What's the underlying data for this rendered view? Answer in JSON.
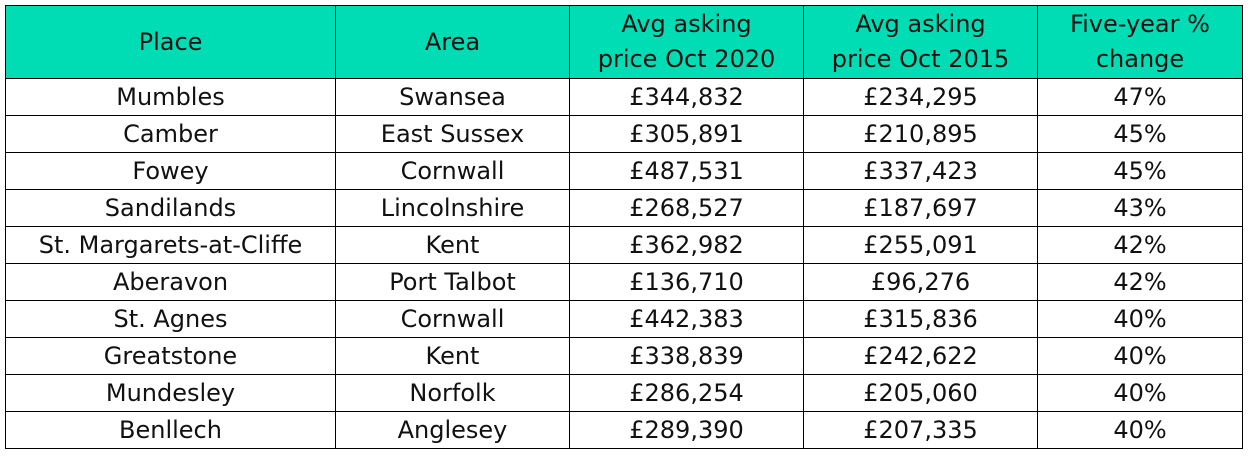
{
  "table": {
    "headers": [
      [
        "Place"
      ],
      [
        "Area"
      ],
      [
        "Avg asking",
        "price Oct 2020"
      ],
      [
        "Avg asking",
        "price Oct 2015"
      ],
      [
        "Five-year %",
        "change"
      ]
    ],
    "header_bg": "#00dcb4",
    "rows": [
      [
        "Mumbles",
        "Swansea",
        "£344,832",
        "£234,295",
        "47%"
      ],
      [
        "Camber",
        "East Sussex",
        "£305,891",
        "£210,895",
        "45%"
      ],
      [
        "Fowey",
        "Cornwall",
        "£487,531",
        "£337,423",
        "45%"
      ],
      [
        "Sandilands",
        "Lincolnshire",
        "£268,527",
        "£187,697",
        "43%"
      ],
      [
        "St. Margarets-at-Cliffe",
        "Kent",
        "£362,982",
        "£255,091",
        "42%"
      ],
      [
        "Aberavon",
        "Port Talbot",
        "£136,710",
        "£96,276",
        "42%"
      ],
      [
        "St. Agnes",
        "Cornwall",
        "£442,383",
        "£315,836",
        "40%"
      ],
      [
        "Greatstone",
        "Kent",
        "£338,839",
        "£242,622",
        "40%"
      ],
      [
        "Mundesley",
        "Norfolk",
        "£286,254",
        "£205,060",
        "40%"
      ],
      [
        "Benllech",
        "Anglesey",
        "£289,390",
        "£207,335",
        "40%"
      ]
    ]
  }
}
